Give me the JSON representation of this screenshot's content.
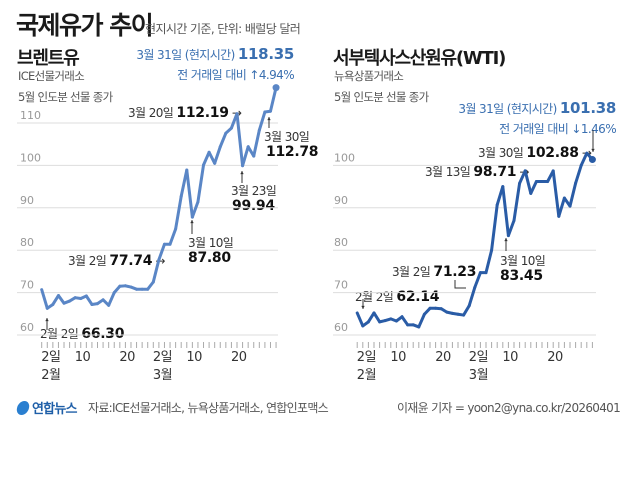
{
  "header": {
    "title": "국제유가 추이",
    "subtitle": "현지시간 기준, 단위: 배럴당 달러"
  },
  "colors": {
    "brent_line": "#5a86c6",
    "wti_line": "#2a5ca6",
    "highlight_text": "#3a6fb0",
    "grid": "#dddddd"
  },
  "chart_data": [
    {
      "type": "line",
      "title": "브렌트유",
      "subtitle_lines": [
        "ICE선물거래소",
        "5월 인도분 선물 종가"
      ],
      "ylim": [
        60,
        110
      ],
      "yticks": [
        "60",
        "70",
        "80",
        "90",
        "100",
        "110"
      ],
      "xtick_labels": [
        {
          "day": "2일",
          "month": "2월"
        },
        {
          "day": "10"
        },
        {
          "day": "20"
        },
        {
          "day": "2일",
          "month": "3월"
        },
        {
          "day": "10"
        },
        {
          "day": "20"
        }
      ],
      "grid": true,
      "x": [
        "1/30",
        "2/2",
        "2/3",
        "2/4",
        "2/5",
        "2/6",
        "2/9",
        "2/10",
        "2/11",
        "2/12",
        "2/13",
        "2/16",
        "2/17",
        "2/18",
        "2/19",
        "2/20",
        "2/23",
        "2/24",
        "2/25",
        "2/26",
        "2/27",
        "3/2",
        "3/3",
        "3/4",
        "3/5",
        "3/6",
        "3/9",
        "3/10",
        "3/11",
        "3/12",
        "3/13",
        "3/16",
        "3/17",
        "3/18",
        "3/19",
        "3/20",
        "3/23",
        "3/24",
        "3/25",
        "3/26",
        "3/27",
        "3/30",
        "3/31"
      ],
      "values": [
        70.7,
        66.3,
        67.2,
        69.3,
        67.5,
        68.0,
        68.8,
        68.6,
        69.2,
        67.2,
        67.4,
        68.3,
        67.0,
        70.0,
        71.5,
        71.6,
        71.3,
        70.8,
        70.8,
        70.8,
        72.5,
        77.74,
        81.4,
        81.4,
        85.0,
        92.7,
        98.9,
        87.8,
        91.4,
        100.1,
        103.1,
        100.5,
        104.4,
        107.6,
        108.8,
        112.19,
        99.94,
        104.4,
        102.2,
        108.3,
        112.6,
        112.78,
        118.35
      ],
      "latest": {
        "label": "3월 31일 (현지시간)",
        "value": "118.35",
        "change_label": "전 거래일 대비",
        "change": "↑4.94%"
      },
      "annotations": [
        {
          "date": "3월 20일",
          "value": "112.19"
        },
        {
          "date": "3월 30일",
          "value": "112.78"
        },
        {
          "date": "3월 23일",
          "value": "99.94"
        },
        {
          "date": "3월 10일",
          "value": "87.80"
        },
        {
          "date": "3월 2일",
          "value": "77.74"
        },
        {
          "date": "2월 2일",
          "value": "66.30"
        }
      ]
    },
    {
      "type": "line",
      "title": "서부텍사스산원유(WTI)",
      "subtitle_lines": [
        "뉴욕상품거래소",
        "5월 인도분 선물 종가"
      ],
      "ylim": [
        60,
        100
      ],
      "yticks": [
        "60",
        "70",
        "80",
        "90",
        "100"
      ],
      "xtick_labels": [
        {
          "day": "2일",
          "month": "2월"
        },
        {
          "day": "10"
        },
        {
          "day": "20"
        },
        {
          "day": "2일",
          "month": "3월"
        },
        {
          "day": "10"
        },
        {
          "day": "20"
        }
      ],
      "grid": true,
      "x": [
        "1/30",
        "2/2",
        "2/3",
        "2/4",
        "2/5",
        "2/6",
        "2/9",
        "2/10",
        "2/11",
        "2/12",
        "2/13",
        "2/16",
        "2/17",
        "2/18",
        "2/19",
        "2/20",
        "2/23",
        "2/24",
        "2/25",
        "2/26",
        "2/27",
        "3/2",
        "3/3",
        "3/4",
        "3/5",
        "3/6",
        "3/9",
        "3/10",
        "3/11",
        "3/12",
        "3/13",
        "3/16",
        "3/17",
        "3/18",
        "3/19",
        "3/20",
        "3/23",
        "3/24",
        "3/25",
        "3/26",
        "3/27",
        "3/30",
        "3/31"
      ],
      "values": [
        65.2,
        62.14,
        63.1,
        65.2,
        63.1,
        63.4,
        63.8,
        63.3,
        64.3,
        62.4,
        62.4,
        61.9,
        64.9,
        66.3,
        66.3,
        66.2,
        65.4,
        65.1,
        64.9,
        64.7,
        66.9,
        71.23,
        74.7,
        74.7,
        80.0,
        90.7,
        95.0,
        83.45,
        87.0,
        95.8,
        98.71,
        93.4,
        96.2,
        96.2,
        96.2,
        98.7,
        88.0,
        92.3,
        90.4,
        95.8,
        100.0,
        102.88,
        101.38
      ],
      "latest": {
        "label": "3월 31일 (현지시간)",
        "value": "101.38",
        "change_label": "전 거래일 대비",
        "change": "↓1.46%"
      },
      "annotations": [
        {
          "date": "3월 30일",
          "value": "102.88"
        },
        {
          "date": "3월 13일",
          "value": "98.71"
        },
        {
          "date": "3월 10일",
          "value": "83.45"
        },
        {
          "date": "3월 2일",
          "value": "71.23"
        },
        {
          "date": "2월 2일",
          "value": "62.14"
        }
      ]
    }
  ],
  "footer": {
    "logo": "연합뉴스",
    "source": "자료:ICE선물거래소, 뉴욕상품거래소, 연합인포맥스",
    "credit": "이재윤 기자 = yoon2@yna.co.kr/20260401"
  }
}
